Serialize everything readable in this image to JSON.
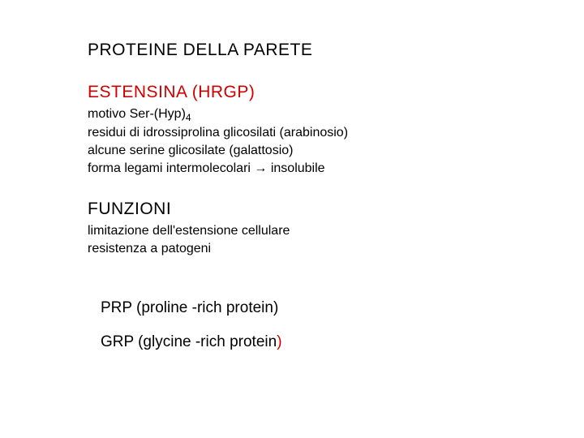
{
  "colors": {
    "red": "#ce0000",
    "black": "#000000",
    "background": "#ffffff"
  },
  "title": "PROTEINE DELLA PARETE",
  "estensina": {
    "heading": "ESTENSINA  (HRGP)",
    "line1_prefix": "motivo Ser-(Hyp)",
    "line1_sub": "4",
    "line2": "residui di idrossiprolina glicosilati (arabinosio)",
    "line3": "alcune serine glicosilate (galattosio)",
    "line4_a": "forma legami intermolecolari ",
    "line4_arrow": "→",
    "line4_b": " insolubile"
  },
  "funzioni": {
    "heading": "FUNZIONI",
    "line1": "limitazione dell'estensione cellulare",
    "line2": "resistenza a patogeni"
  },
  "prp": "PRP (proline -rich protein)",
  "grp_a": "GRP (glycine -rich protein",
  "grp_paren": ")"
}
